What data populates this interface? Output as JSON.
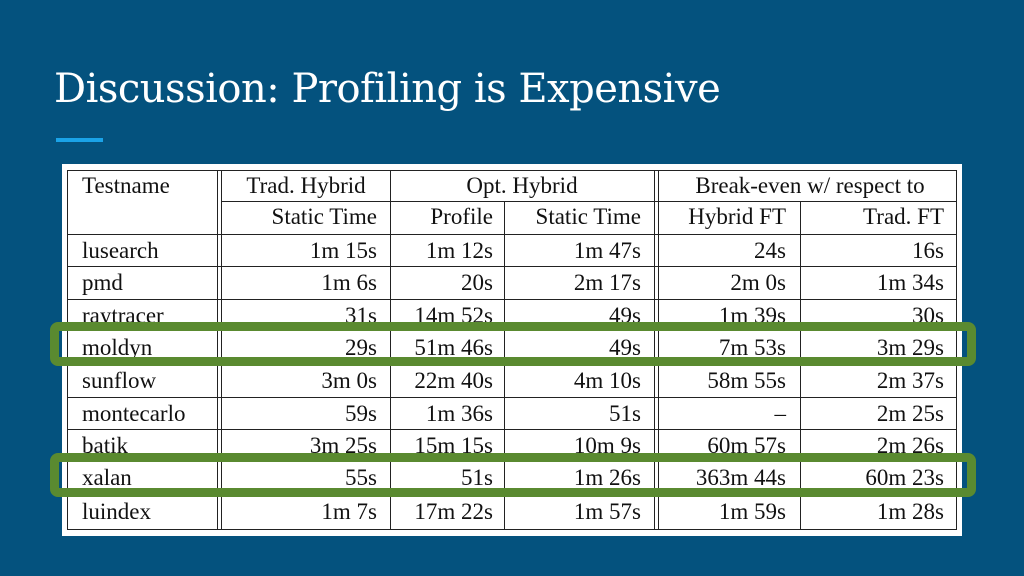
{
  "slide": {
    "title": "Discussion: Profiling is Expensive",
    "accent_color": "#1aa3e8",
    "background_color": "#04527e",
    "highlight_color": "#5a8a30"
  },
  "table": {
    "group_headers": {
      "testname": "Testname",
      "trad_hybrid": "Trad. Hybrid",
      "opt_hybrid": "Opt. Hybrid",
      "break_even": "Break-even w/ respect to"
    },
    "sub_headers": {
      "trad_static": "Static Time",
      "profile": "Profile",
      "opt_static": "Static Time",
      "hybrid_ft": "Hybrid FT",
      "trad_ft": "Trad. FT"
    },
    "rows": [
      {
        "name": "lusearch",
        "trad_static": "1m 15s",
        "profile": "1m 12s",
        "opt_static": "1m 47s",
        "hybrid_ft": "24s",
        "trad_ft": "16s"
      },
      {
        "name": "pmd",
        "trad_static": "1m 6s",
        "profile": "20s",
        "opt_static": "2m 17s",
        "hybrid_ft": "2m 0s",
        "trad_ft": "1m 34s"
      },
      {
        "name": "raytracer",
        "trad_static": "31s",
        "profile": "14m 52s",
        "opt_static": "49s",
        "hybrid_ft": "1m 39s",
        "trad_ft": "30s"
      },
      {
        "name": "moldyn",
        "trad_static": "29s",
        "profile": "51m 46s",
        "opt_static": "49s",
        "hybrid_ft": "7m 53s",
        "trad_ft": "3m 29s"
      },
      {
        "name": "sunflow",
        "trad_static": "3m 0s",
        "profile": "22m 40s",
        "opt_static": "4m 10s",
        "hybrid_ft": "58m 55s",
        "trad_ft": "2m 37s"
      },
      {
        "name": "montecarlo",
        "trad_static": "59s",
        "profile": "1m 36s",
        "opt_static": "51s",
        "hybrid_ft": "–",
        "trad_ft": "2m 25s"
      },
      {
        "name": "batik",
        "trad_static": "3m 25s",
        "profile": "15m 15s",
        "opt_static": "10m 9s",
        "hybrid_ft": "60m 57s",
        "trad_ft": "2m 26s"
      },
      {
        "name": "xalan",
        "trad_static": "55s",
        "profile": "51s",
        "opt_static": "1m 26s",
        "hybrid_ft": "363m 44s",
        "trad_ft": "60m 23s"
      },
      {
        "name": "luindex",
        "trad_static": "1m 7s",
        "profile": "17m 22s",
        "opt_static": "1m 57s",
        "hybrid_ft": "1m 59s",
        "trad_ft": "1m 28s"
      }
    ],
    "highlighted_rows": [
      "moldyn",
      "xalan"
    ]
  }
}
